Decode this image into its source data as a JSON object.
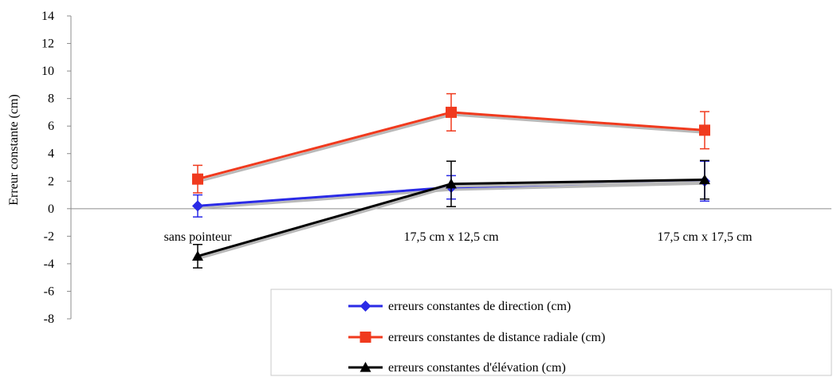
{
  "chart_data": {
    "type": "line",
    "title": "",
    "xlabel": "",
    "ylabel": "Erreur constante (cm)",
    "ylim": [
      -8,
      14
    ],
    "y_ticks": [
      14,
      12,
      10,
      8,
      6,
      4,
      2,
      0,
      -2,
      -4,
      -6,
      -8
    ],
    "categories": [
      "sans pointeur",
      "17,5 cm x 12,5 cm",
      "17,5 cm x 17,5 cm"
    ],
    "grid": false,
    "legend_position": "bottom-right",
    "series": [
      {
        "name": "erreurs constantes de direction (cm)",
        "color": "#2a2ae6",
        "marker": "diamond",
        "values": [
          0.2,
          1.55,
          2.0
        ],
        "error": [
          0.8,
          0.85,
          1.45
        ]
      },
      {
        "name": "erreurs constantes de distance radiale (cm)",
        "color": "#f03a1e",
        "marker": "square",
        "values": [
          2.15,
          7.0,
          5.7
        ],
        "error": [
          1.0,
          1.35,
          1.35
        ]
      },
      {
        "name": "erreurs constantes d'élévation (cm)",
        "color": "#000000",
        "marker": "triangle",
        "values": [
          -3.45,
          1.8,
          2.1
        ],
        "error": [
          0.85,
          1.65,
          1.4
        ]
      }
    ]
  }
}
